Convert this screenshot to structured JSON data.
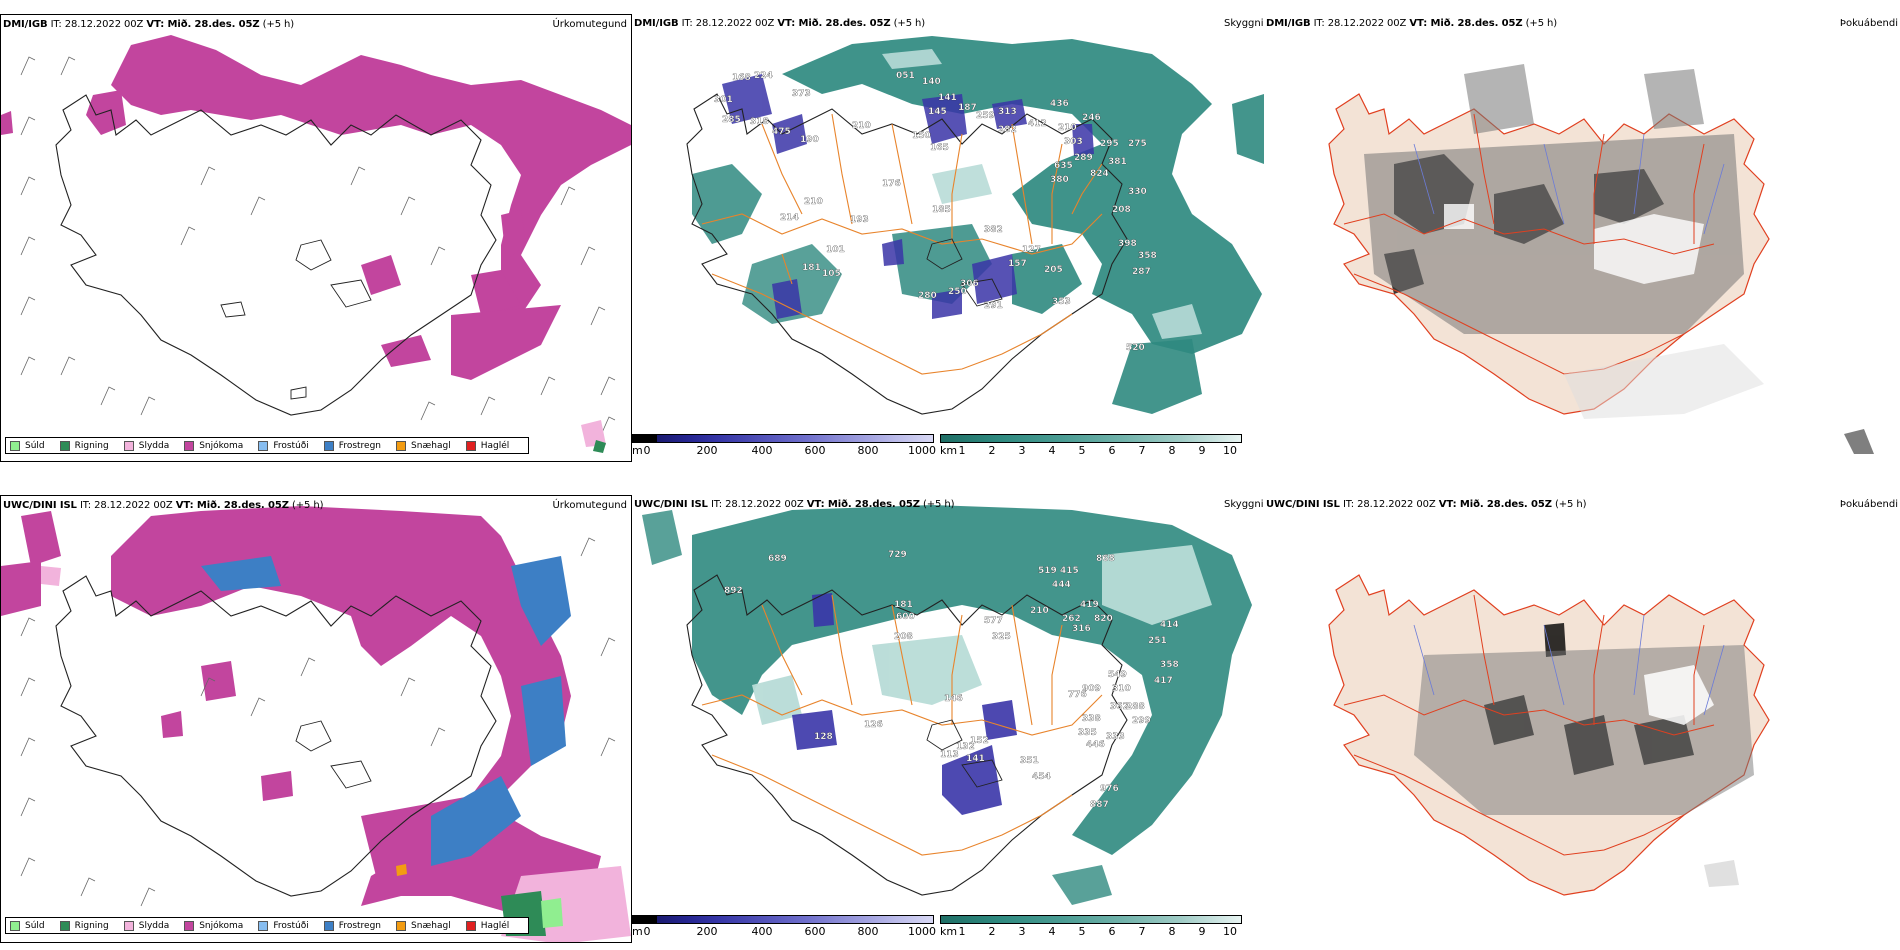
{
  "colors": {
    "snow": "#c2459e",
    "frostregn": "#3d7fc5",
    "sleet": "#f2b3dc",
    "sulid": "#90ee90",
    "rain": "#2e8b57",
    "frostudi": "#87bdf0",
    "snaehagl": "#f39c12",
    "hagl": "#e02020",
    "teal": "#2f8a80",
    "teal_light": "#b8dcd7",
    "purple": "#3a35a8",
    "orange": "#e8842c",
    "red": "#e04020",
    "landbeige": "#f3e3d6"
  },
  "row1": {
    "precip": {
      "model": "DMI/IGB",
      "it_label": "IT:",
      "it": "28.12.2022 00Z",
      "vt_label": "VT:",
      "vt": "Mið. 28.des. 05Z",
      "lead": "(+5 h)",
      "right": "Úrkomutegund"
    },
    "cloud": {
      "model": "DMI/IGB",
      "it_label": "IT:",
      "it": "28.12.2022 00Z",
      "vt_label": "VT:",
      "vt": "Mið. 28.des. 05Z",
      "lead": "(+5 h)",
      "right": "Skyggni",
      "labels": [
        "168",
        "224",
        "373",
        "301",
        "285",
        "318",
        "475",
        "190",
        "210",
        "051",
        "140",
        "141",
        "145",
        "150",
        "165",
        "187",
        "259",
        "313",
        "282",
        "412",
        "436",
        "210",
        "246",
        "303",
        "289",
        "295",
        "381",
        "275",
        "330",
        "208",
        "380",
        "635",
        "824",
        "214",
        "210",
        "193",
        "176",
        "185",
        "382",
        "127",
        "157",
        "205",
        "398",
        "358",
        "287",
        "101",
        "105",
        "181",
        "280",
        "250",
        "306",
        "291",
        "353",
        "520"
      ]
    },
    "fog": {
      "model": "DMI/IGB",
      "it_label": "IT:",
      "it": "28.12.2022 00Z",
      "vt_label": "VT:",
      "vt": "Mið. 28.des. 05Z",
      "lead": "(+5 h)",
      "right": "Þokuábendi"
    }
  },
  "row2": {
    "precip": {
      "model": "UWC/DINI ISL",
      "it_label": "IT:",
      "it": "28.12.2022 00Z",
      "vt_label": "VT:",
      "vt": "Mið. 28.des. 05Z",
      "lead": "(+5 h)",
      "right": "Úrkomutegund"
    },
    "cloud": {
      "model": "UWC/DINI ISL",
      "it_label": "IT:",
      "it": "28.12.2022 00Z",
      "vt_label": "VT:",
      "vt": "Mið. 28.des. 05Z",
      "lead": "(+5 h)",
      "right": "Skyggni",
      "labels": [
        "689",
        "729",
        "892",
        "868",
        "519",
        "415",
        "444",
        "419",
        "210",
        "262",
        "316",
        "820",
        "181",
        "600",
        "208",
        "325",
        "577",
        "414",
        "251",
        "358",
        "549",
        "417",
        "909",
        "310",
        "776",
        "362",
        "288",
        "338",
        "299",
        "333",
        "335",
        "446",
        "128",
        "126",
        "146",
        "113",
        "132",
        "141",
        "152",
        "351",
        "454",
        "976",
        "887"
      ]
    },
    "fog": {
      "model": "UWC/DINI ISL",
      "it_label": "IT:",
      "it": "28.12.2022 00Z",
      "vt_label": "VT:",
      "vt": "Mið. 28.des. 05Z",
      "lead": "(+5 h)",
      "right": "Þokuábendi"
    }
  },
  "legend_precip": [
    "Súld",
    "Rigning",
    "Slydda",
    "Snjókoma",
    "Frostúði",
    "Frostregn",
    "Snæhagl",
    "Haglél"
  ],
  "height_bar": {
    "unit": "m",
    "ticks": [
      "0",
      "200",
      "400",
      "600",
      "800",
      "1000"
    ]
  },
  "vis_bar": {
    "unit": "km",
    "ticks": [
      "1",
      "2",
      "3",
      "4",
      "5",
      "6",
      "7",
      "8",
      "9",
      "10"
    ]
  },
  "fog_box": {
    "top": "0",
    "bottom": "60"
  }
}
